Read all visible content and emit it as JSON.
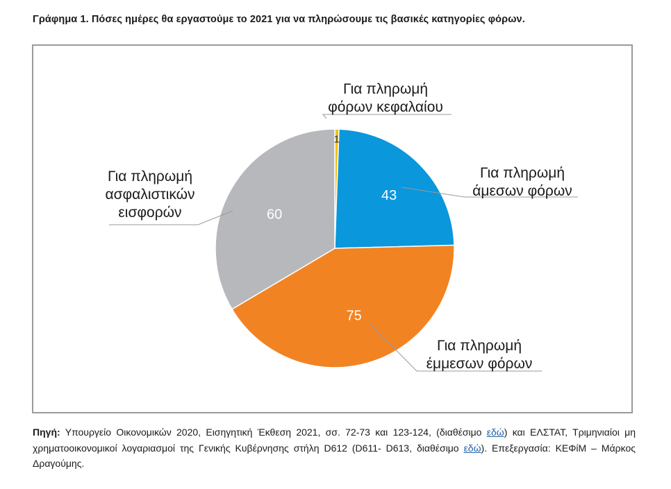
{
  "title": "Γράφημα 1. Πόσες ημέρες θα εργαστούμε το 2021 για να πληρώσουμε τις βασικές κατηγορίες φόρων.",
  "chart_data": {
    "type": "pie",
    "title": "",
    "slices": [
      {
        "value": 1,
        "label_lines": [
          "Για πληρωμή",
          "φόρων κεφαλαίου"
        ],
        "color": "#f2c21b"
      },
      {
        "value": 43,
        "label_lines": [
          "Για πληρωμή",
          "άμεσων φόρων"
        ],
        "color": "#0a97dc"
      },
      {
        "value": 75,
        "label_lines": [
          "Για πληρωμή",
          "έμμεσων φόρων"
        ],
        "color": "#f28322"
      },
      {
        "value": 60,
        "label_lines": [
          "Για πληρωμή",
          "ασφαλιστικών",
          "εισφορών"
        ],
        "color": "#b7b8bb"
      }
    ]
  },
  "source": {
    "lead": "Πηγή:",
    "part1": " Υπουργείο Οικονομικών 2020, Εισηγητική Έκθεση 2021, σσ. 72-73 και 123-124, (διαθέσιμο ",
    "link1": "εδώ",
    "part2": ") και ΕΛΣΤΑΤ, Τριμηνιαίοι μη χρηματοοικονομικοί λογαριασμοί της Γενικής Κυβέρνησης στήλη D612 (D611- D613, διαθέσιμο ",
    "link2": "εδώ",
    "part3": "). Επεξεργασία: ΚΕΦίΜ – Μάρκος Δραγούμης."
  }
}
